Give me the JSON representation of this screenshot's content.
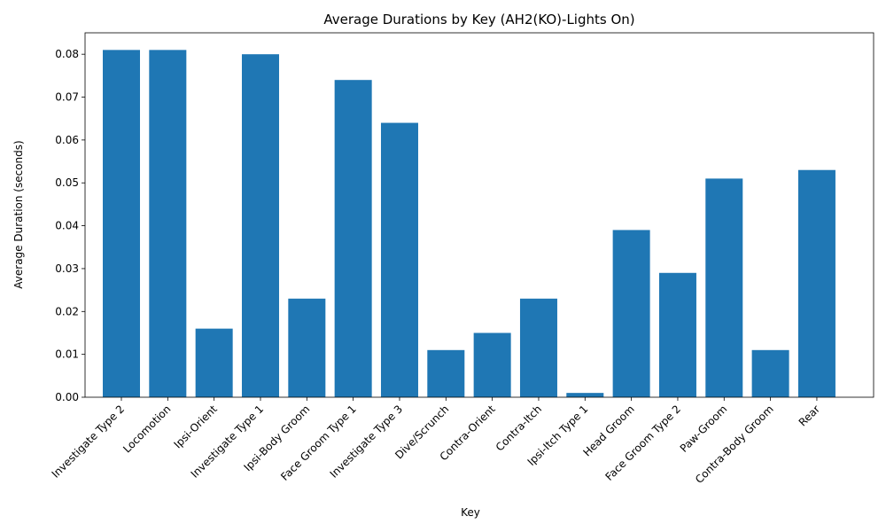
{
  "chart_data": {
    "type": "bar",
    "title": "Average Durations by Key (AH2(KO)-Lights On)",
    "xlabel": "Key",
    "ylabel": "Average Duration (seconds)",
    "categories": [
      "Investigate Type 2",
      "Locomotion",
      "Ipsi-Orient",
      "Investigate Type 1",
      "Ipsi-Body Groom",
      "Face Groom Type 1",
      "Investigate Type 3",
      "Dive/Scrunch",
      "Contra-Orient",
      "Contra-Itch",
      "Ipsi-Itch Type 1",
      "Head Groom",
      "Face Groom Type 2",
      "Paw-Groom",
      "Contra-Body Groom",
      "Rear"
    ],
    "values": [
      0.081,
      0.081,
      0.016,
      0.08,
      0.023,
      0.074,
      0.064,
      0.011,
      0.015,
      0.023,
      0.001,
      0.039,
      0.029,
      0.051,
      0.011,
      0.053
    ],
    "ylim": [
      0,
      0.085
    ],
    "yticks": [
      "0.00",
      "0.01",
      "0.02",
      "0.03",
      "0.04",
      "0.05",
      "0.06",
      "0.07",
      "0.08"
    ],
    "bar_color": "#1f77b4",
    "grid": false,
    "legend": "none"
  }
}
